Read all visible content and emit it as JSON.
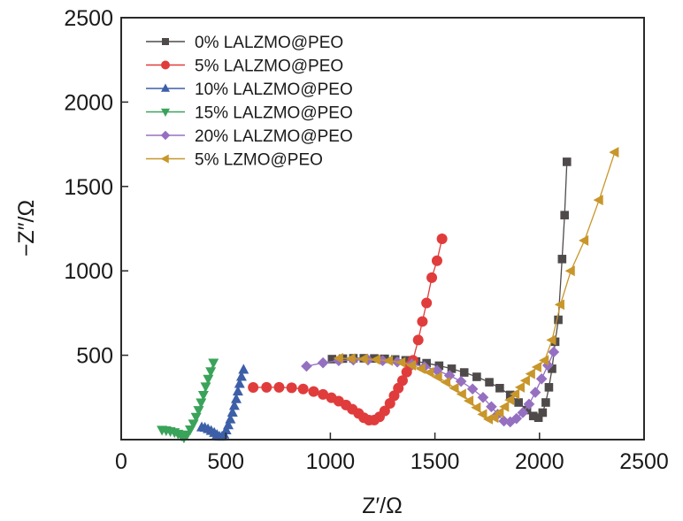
{
  "chart_data": {
    "type": "scatter",
    "title": "",
    "xlabel": "Z′/Ω",
    "ylabel": "−Z″/Ω",
    "xlim": [
      0,
      2500
    ],
    "ylim": [
      0,
      2500
    ],
    "xticks": [
      0,
      500,
      1000,
      1500,
      2000,
      2500
    ],
    "yticks": [
      500,
      1000,
      1500,
      2000,
      2500
    ],
    "xtick_labels": [
      "0",
      "500",
      "1000",
      "1500",
      "2000",
      "2500"
    ],
    "ytick_labels": [
      "500",
      "1000",
      "1500",
      "2000",
      "2500"
    ],
    "grid": false,
    "legend_position": "top-left",
    "series": [
      {
        "name": "0% LALZMO@PEO",
        "color": "#4f4a4a",
        "marker": "square",
        "x": [
          1008,
          1060,
          1110,
          1160,
          1210,
          1260,
          1310,
          1360,
          1410,
          1460,
          1520,
          1580,
          1640,
          1700,
          1760,
          1810,
          1860,
          1900,
          1940,
          1970,
          1995,
          2015,
          2030,
          2045,
          2060,
          2075,
          2090,
          2108,
          2120,
          2131
        ],
        "y": [
          477,
          480,
          482,
          482,
          481,
          479,
          475,
          470,
          463,
          453,
          438,
          420,
          398,
          372,
          340,
          305,
          265,
          220,
          175,
          140,
          130,
          160,
          220,
          310,
          420,
          580,
          710,
          1070,
          1330,
          1646
        ]
      },
      {
        "name": "5% LALZMO@PEO",
        "color": "#e03c3c",
        "marker": "circle",
        "x": [
          631,
          695,
          755,
          815,
          870,
          920,
          965,
          1005,
          1040,
          1075,
          1105,
          1135,
          1160,
          1185,
          1210,
          1235,
          1260,
          1285,
          1305,
          1325,
          1345,
          1365,
          1380,
          1395,
          1420,
          1440,
          1460,
          1485,
          1510,
          1534
        ],
        "y": [
          309,
          310,
          310,
          307,
          300,
          285,
          268,
          248,
          228,
          205,
          180,
          155,
          130,
          115,
          116,
          135,
          170,
          215,
          260,
          305,
          350,
          400,
          440,
          470,
          590,
          700,
          810,
          960,
          1060,
          1190
        ]
      },
      {
        "name": "10% LALZMO@PEO",
        "color": "#3d5fa8",
        "marker": "triangle-up",
        "x": [
          385,
          400,
          415,
          430,
          445,
          458,
          470,
          482,
          492,
          502,
          512,
          522,
          532,
          541,
          550,
          558,
          566,
          575,
          585
        ],
        "y": [
          73,
          70,
          62,
          52,
          40,
          28,
          18,
          18,
          30,
          55,
          85,
          120,
          160,
          200,
          240,
          285,
          330,
          372,
          414
        ]
      },
      {
        "name": "15% LALZMO@PEO",
        "color": "#3aa35a",
        "marker": "triangle-down",
        "x": [
          195,
          215,
          235,
          255,
          272,
          288,
          300,
          315,
          330,
          345,
          358,
          370,
          382,
          393,
          404,
          416,
          428,
          441
        ],
        "y": [
          58,
          55,
          50,
          44,
          35,
          22,
          12,
          30,
          60,
          95,
          135,
          175,
          220,
          265,
          315,
          360,
          405,
          456
        ]
      },
      {
        "name": "20% LALZMO@PEO",
        "color": "#9570c0",
        "marker": "diamond",
        "x": [
          886,
          965,
          1040,
          1110,
          1180,
          1250,
          1320,
          1390,
          1450,
          1510,
          1570,
          1625,
          1680,
          1730,
          1770,
          1800,
          1830,
          1860,
          1890,
          1920,
          1950,
          1980,
          2010,
          2040,
          2068
        ],
        "y": [
          435,
          455,
          468,
          472,
          472,
          468,
          460,
          448,
          432,
          410,
          380,
          345,
          300,
          250,
          195,
          150,
          110,
          105,
          125,
          160,
          210,
          280,
          360,
          440,
          519
        ]
      },
      {
        "name": "5% LZMO@PEO",
        "color": "#c8962a",
        "marker": "triangle-left",
        "x": [
          1042,
          1100,
          1160,
          1220,
          1280,
          1340,
          1390,
          1435,
          1475,
          1515,
          1555,
          1595,
          1630,
          1665,
          1700,
          1730,
          1758,
          1785,
          1810,
          1835,
          1860,
          1885,
          1910,
          1935,
          1960,
          1990,
          2025,
          2060,
          2100,
          2150,
          2215,
          2285,
          2360
        ],
        "y": [
          482,
          480,
          478,
          474,
          468,
          457,
          440,
          420,
          398,
          370,
          340,
          305,
          270,
          230,
          190,
          150,
          121,
          130,
          160,
          195,
          235,
          270,
          310,
          350,
          390,
          430,
          470,
          590,
          800,
          1000,
          1180,
          1420,
          1703
        ]
      }
    ]
  }
}
